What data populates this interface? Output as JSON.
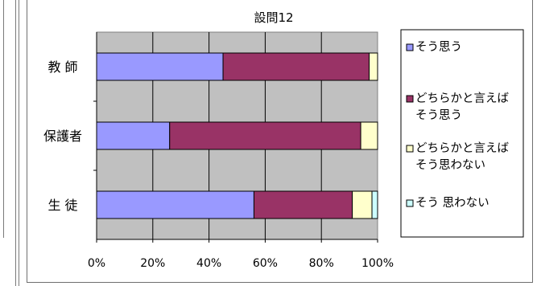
{
  "chart_data": {
    "type": "bar",
    "orientation": "horizontal",
    "stacked": "percent",
    "title": "設問12",
    "categories": [
      "教 師",
      "保護者",
      "生 徒"
    ],
    "series": [
      {
        "name": "そう思う",
        "color": "#9999ff",
        "values": [
          45,
          26,
          56
        ]
      },
      {
        "name": "どちらかと言えば\nそう思う",
        "color": "#993366",
        "values": [
          52,
          68,
          35
        ]
      },
      {
        "name": "どちらかと言えば\nそう思わない",
        "color": "#ffffcc",
        "values": [
          3,
          6,
          7
        ]
      },
      {
        "name": "そう 思わない",
        "color": "#ccffff",
        "values": [
          0,
          0,
          2
        ]
      }
    ],
    "xlim": [
      0,
      100
    ],
    "xticks": [
      "0%",
      "20%",
      "40%",
      "60%",
      "80%",
      "100%"
    ],
    "grid": true,
    "plot_background": "#c0c0c0",
    "legend_position": "right"
  }
}
